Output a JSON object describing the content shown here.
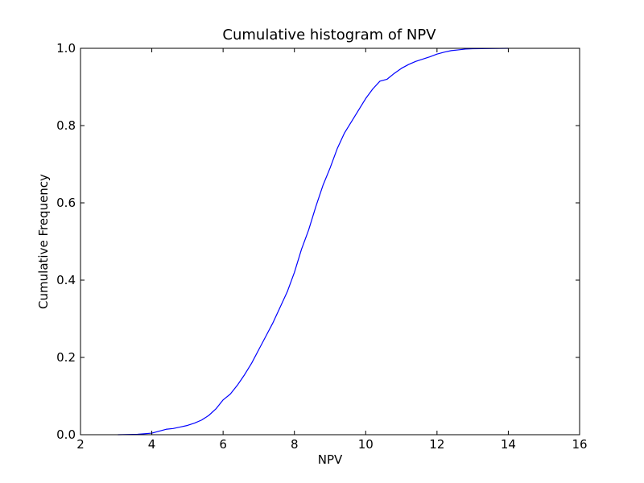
{
  "chart_data": {
    "type": "line",
    "title": "Cumulative histogram of NPV",
    "xlabel": "NPV",
    "ylabel": "Cumulative Frequency",
    "xlim": [
      2,
      16
    ],
    "ylim": [
      0,
      1
    ],
    "xticks": [
      "2",
      "4",
      "6",
      "8",
      "10",
      "12",
      "14",
      "16"
    ],
    "yticks": [
      "0.0",
      "0.2",
      "0.4",
      "0.6",
      "0.8",
      "1.0"
    ],
    "grid": false,
    "legend": "none",
    "series": [
      {
        "color": "#0000ff",
        "x": [
          3.05,
          3.6,
          4.0,
          4.2,
          4.4,
          4.6,
          4.8,
          5.0,
          5.2,
          5.4,
          5.6,
          5.8,
          6.0,
          6.2,
          6.4,
          6.6,
          6.8,
          7.0,
          7.2,
          7.4,
          7.6,
          7.8,
          8.0,
          8.2,
          8.4,
          8.6,
          8.8,
          9.0,
          9.2,
          9.4,
          9.6,
          9.8,
          10.0,
          10.2,
          10.4,
          10.6,
          10.8,
          11.0,
          11.2,
          11.4,
          11.6,
          11.8,
          12.0,
          12.2,
          12.4,
          12.6,
          12.8,
          13.0,
          13.5,
          14.0
        ],
        "y": [
          0.0,
          0.001,
          0.004,
          0.009,
          0.014,
          0.016,
          0.02,
          0.024,
          0.03,
          0.038,
          0.05,
          0.067,
          0.09,
          0.105,
          0.128,
          0.155,
          0.185,
          0.22,
          0.255,
          0.29,
          0.33,
          0.37,
          0.42,
          0.48,
          0.53,
          0.59,
          0.645,
          0.69,
          0.74,
          0.78,
          0.81,
          0.84,
          0.87,
          0.895,
          0.915,
          0.92,
          0.935,
          0.948,
          0.958,
          0.966,
          0.972,
          0.978,
          0.985,
          0.99,
          0.994,
          0.996,
          0.998,
          0.999,
          0.9995,
          1.0
        ]
      }
    ]
  }
}
